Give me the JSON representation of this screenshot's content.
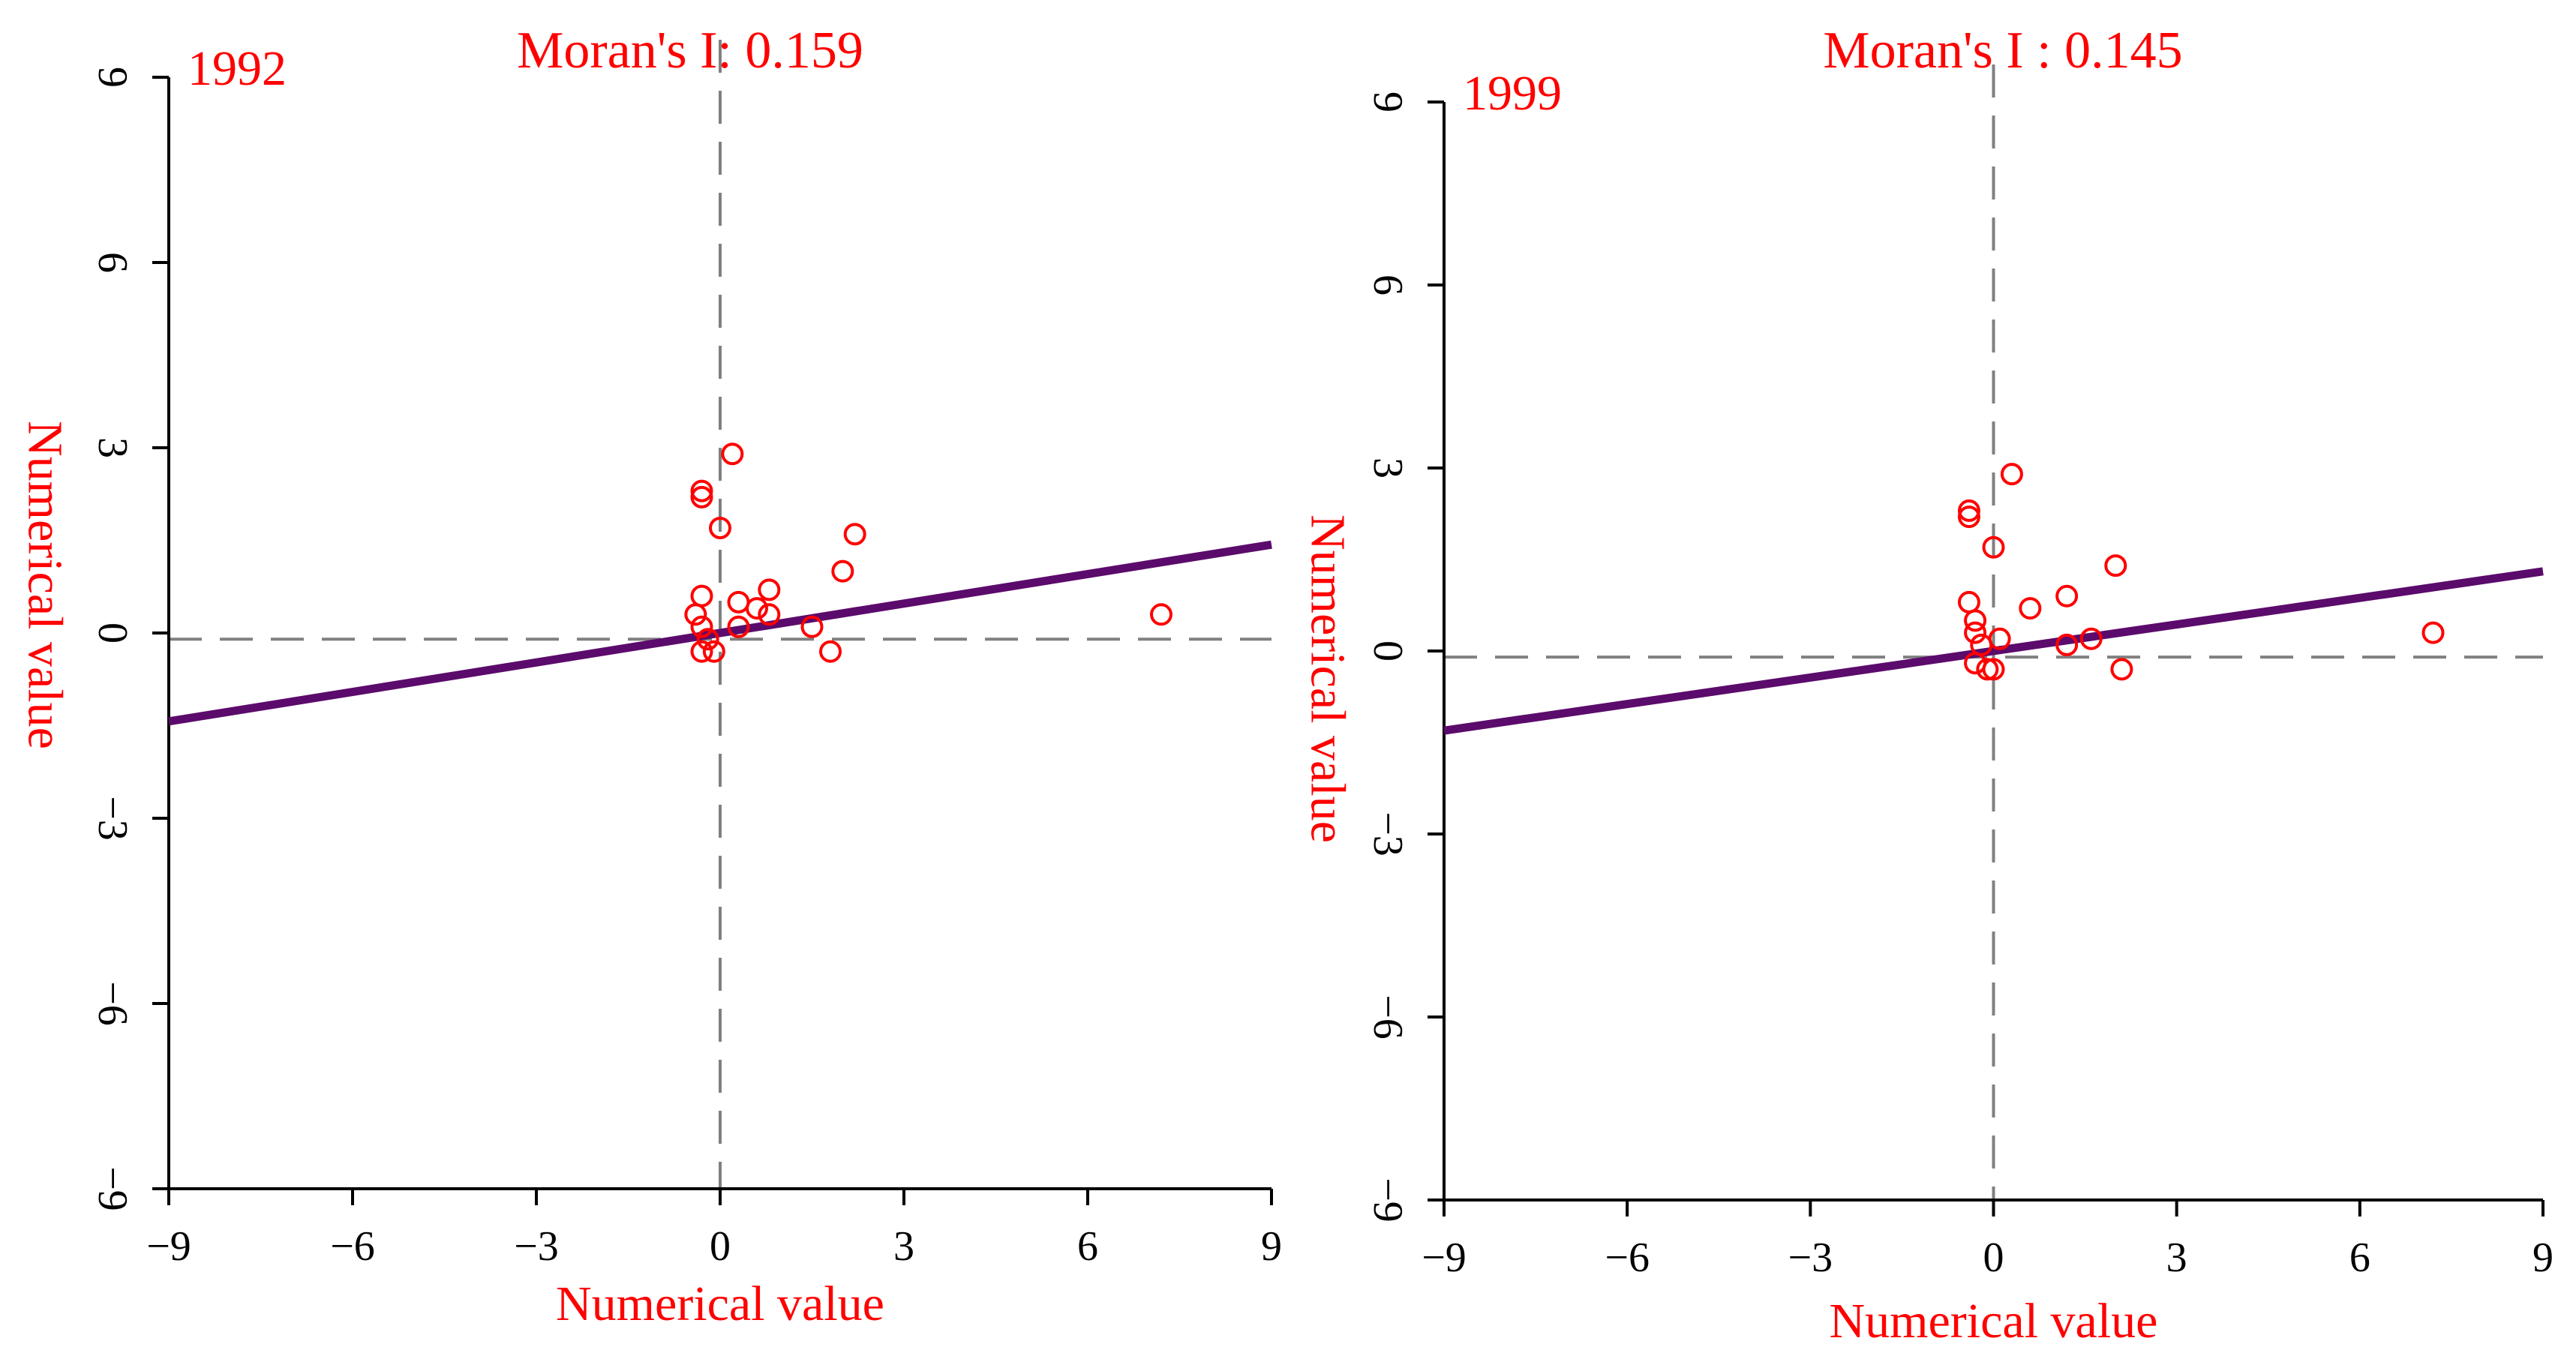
{
  "style": {
    "marker_color": "#ff0000",
    "fit_color": "#5b0b6b",
    "axis_color": "#000000",
    "ref_line_color": "#808080",
    "label_color": "#ff0000"
  },
  "chart_data": [
    {
      "type": "scatter",
      "year": "1992",
      "title": "Moran's I: 0.159",
      "xlabel": "Numerical value",
      "ylabel": "Numerical value",
      "xlim": [
        -9,
        9
      ],
      "ylim": [
        -9,
        9
      ],
      "xticks": [
        "−9",
        "−6",
        "−3",
        "0",
        "3",
        "6",
        "9"
      ],
      "yticks": [
        "−9",
        "−6",
        "−3",
        "0",
        "3",
        "6",
        "9"
      ],
      "xtick_values": [
        -9,
        -6,
        -3,
        0,
        3,
        6,
        9
      ],
      "ytick_values": [
        -9,
        -6,
        -3,
        0,
        3,
        6,
        9
      ],
      "grid": false,
      "reference_lines": {
        "x": 0,
        "y": -0.1
      },
      "fit_line": {
        "slope": 0.159,
        "intercept": 0
      },
      "points": [
        {
          "x": 0.2,
          "y": 2.9
        },
        {
          "x": -0.3,
          "y": 2.3
        },
        {
          "x": -0.3,
          "y": 2.2
        },
        {
          "x": 0.0,
          "y": 1.7
        },
        {
          "x": 2.2,
          "y": 1.6
        },
        {
          "x": 2.0,
          "y": 1.0
        },
        {
          "x": 0.8,
          "y": 0.7
        },
        {
          "x": -0.3,
          "y": 0.6
        },
        {
          "x": 0.3,
          "y": 0.5
        },
        {
          "x": 0.6,
          "y": 0.4
        },
        {
          "x": 0.8,
          "y": 0.3
        },
        {
          "x": -0.4,
          "y": 0.3
        },
        {
          "x": -0.3,
          "y": 0.1
        },
        {
          "x": 0.3,
          "y": 0.1
        },
        {
          "x": -0.2,
          "y": -0.1
        },
        {
          "x": 1.5,
          "y": 0.1
        },
        {
          "x": 1.8,
          "y": -0.3
        },
        {
          "x": -0.3,
          "y": -0.3
        },
        {
          "x": -0.1,
          "y": -0.3
        },
        {
          "x": 7.2,
          "y": 0.3
        }
      ]
    },
    {
      "type": "scatter",
      "year": "1999",
      "title": "Moran's I : 0.145",
      "xlabel": "Numerical value",
      "ylabel": "Numerical value",
      "xlim": [
        -9,
        9
      ],
      "ylim": [
        -9,
        9
      ],
      "xticks": [
        "−9",
        "−6",
        "−3",
        "0",
        "3",
        "6",
        "9"
      ],
      "yticks": [
        "−9",
        "−6",
        "−3",
        "0",
        "3",
        "6",
        "9"
      ],
      "xtick_values": [
        -9,
        -6,
        -3,
        0,
        3,
        6,
        9
      ],
      "ytick_values": [
        -9,
        -6,
        -3,
        0,
        3,
        6,
        9
      ],
      "grid": false,
      "reference_lines": {
        "x": 0,
        "y": -0.1
      },
      "fit_line": {
        "slope": 0.145,
        "intercept": 0
      },
      "points": [
        {
          "x": 0.3,
          "y": 2.9
        },
        {
          "x": -0.4,
          "y": 2.3
        },
        {
          "x": -0.4,
          "y": 2.2
        },
        {
          "x": 0.0,
          "y": 1.7
        },
        {
          "x": 2.0,
          "y": 1.4
        },
        {
          "x": 1.2,
          "y": 0.9
        },
        {
          "x": 0.6,
          "y": 0.7
        },
        {
          "x": -0.4,
          "y": 0.8
        },
        {
          "x": -0.3,
          "y": 0.5
        },
        {
          "x": -0.3,
          "y": 0.3
        },
        {
          "x": 0.1,
          "y": 0.2
        },
        {
          "x": -0.2,
          "y": 0.1
        },
        {
          "x": 1.2,
          "y": 0.1
        },
        {
          "x": 1.6,
          "y": 0.2
        },
        {
          "x": -0.3,
          "y": -0.2
        },
        {
          "x": 0.0,
          "y": -0.3
        },
        {
          "x": -0.1,
          "y": -0.3
        },
        {
          "x": 2.1,
          "y": -0.3
        },
        {
          "x": 7.2,
          "y": 0.3
        }
      ]
    }
  ]
}
